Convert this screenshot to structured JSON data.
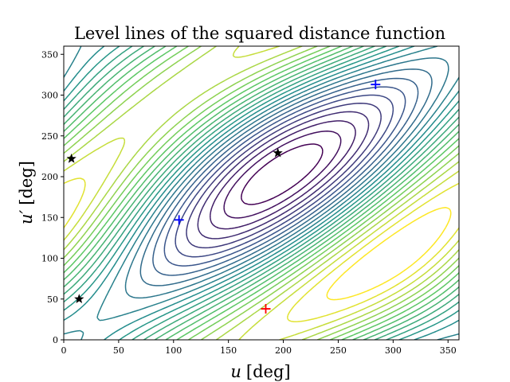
{
  "chart_data": {
    "type": "contour",
    "title": "Level lines of the squared distance function",
    "xlabel": {
      "var": "u",
      "unit": "[deg]"
    },
    "ylabel": {
      "var": "u′",
      "unit": "[deg]"
    },
    "xlim": [
      0,
      360
    ],
    "ylim": [
      0,
      360
    ],
    "xticks": [
      "0",
      "50",
      "100",
      "150",
      "200",
      "250",
      "300",
      "350"
    ],
    "yticks": [
      "0",
      "50",
      "100",
      "150",
      "200",
      "250",
      "300",
      "350"
    ],
    "grid": false,
    "legend": "none",
    "colormap": [
      "#440154",
      "#3b528b",
      "#21918c",
      "#5ec962",
      "#fde725"
    ],
    "markers": [
      {
        "symbol": "star",
        "color": "#000000",
        "x": 7,
        "y": 222
      },
      {
        "symbol": "star",
        "color": "#000000",
        "x": 14,
        "y": 50
      },
      {
        "symbol": "star",
        "color": "#000000",
        "x": 195,
        "y": 229
      },
      {
        "symbol": "plus",
        "color": "#0000ff",
        "x": 105,
        "y": 147
      },
      {
        "symbol": "plus",
        "color": "#0000ff",
        "x": 284,
        "y": 313
      },
      {
        "symbol": "plus",
        "color": "#ff0000",
        "x": 184,
        "y": 38
      }
    ]
  }
}
